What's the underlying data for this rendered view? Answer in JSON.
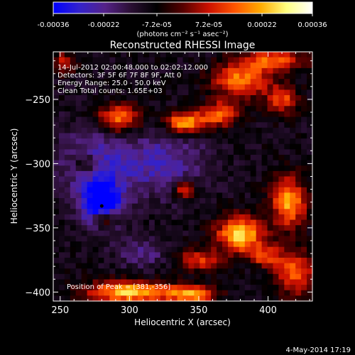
{
  "colorbar": {
    "ticks": [
      -0.00036,
      -0.00022,
      -7.2e-05,
      7.2e-05,
      0.00022,
      0.00036
    ],
    "tick_labels": [
      "-0.00036",
      "-0.00022",
      "-7.2e-05",
      "7.2e-05",
      "0.00022",
      "0.00036"
    ],
    "unit_label": "(photons cm⁻² s⁻¹ asec⁻²)",
    "range": [
      -0.00036,
      0.00036
    ],
    "colormap": [
      "#0000ff",
      "#3322cc",
      "#552288",
      "#2a0f33",
      "#000000",
      "#550000",
      "#cc1100",
      "#ff5500",
      "#ffaa00",
      "#ffff80",
      "#ffffff"
    ]
  },
  "chart_data": {
    "type": "heatmap",
    "title": "Reconstructed RHESSI Image",
    "xlabel": "Heliocentric X (arcsec)",
    "ylabel": "Heliocentric Y (arcsec)",
    "xlim": [
      245,
      432
    ],
    "ylim": [
      -407,
      -213
    ],
    "x_ticks": [
      250,
      300,
      350,
      400
    ],
    "y_ticks": [
      -250,
      -300,
      -350,
      -400
    ],
    "annotations": [
      "14-Jul-2012 02:00:48.000 to 02:02:12.000",
      "Detectors: 3F 5F 6F 7F 8F 9F, Att 0",
      "Energy Range: 25.0 - 50.0 keV",
      "Clean    Total counts: 1.65E+03"
    ],
    "position_label": "Position of Peak = [381,-356]",
    "peak": [
      381,
      -356
    ],
    "marker": [
      280,
      -333
    ],
    "grid": false,
    "sources": [
      {
        "x": 380,
        "y": -355,
        "sx": 12,
        "sy": 10,
        "amp": 1.0
      },
      {
        "x": 292,
        "y": -265,
        "sx": 11,
        "sy": 8,
        "amp": 0.8
      },
      {
        "x": 380,
        "y": -235,
        "sx": 14,
        "sy": 10,
        "amp": 0.75
      },
      {
        "x": 340,
        "y": -268,
        "sx": 10,
        "sy": 6,
        "amp": 0.95
      },
      {
        "x": 365,
        "y": -262,
        "sx": 9,
        "sy": 7,
        "amp": 0.7
      },
      {
        "x": 410,
        "y": -250,
        "sx": 8,
        "sy": 8,
        "amp": 0.6
      },
      {
        "x": 300,
        "y": -400,
        "sx": 22,
        "sy": 6,
        "amp": 0.95
      },
      {
        "x": 345,
        "y": -402,
        "sx": 12,
        "sy": 5,
        "amp": 0.8
      },
      {
        "x": 415,
        "y": -330,
        "sx": 9,
        "sy": 14,
        "amp": 0.85
      },
      {
        "x": 420,
        "y": -385,
        "sx": 10,
        "sy": 12,
        "amp": 0.7
      },
      {
        "x": 282,
        "y": -343,
        "sx": 6,
        "sy": 5,
        "amp": 0.75
      },
      {
        "x": 340,
        "y": -320,
        "sx": 6,
        "sy": 5,
        "amp": 0.65
      },
      {
        "x": 268,
        "y": -300,
        "sx": 7,
        "sy": 6,
        "amp": 0.45
      },
      {
        "x": 252,
        "y": -222,
        "sx": 6,
        "sy": 6,
        "amp": 0.5
      },
      {
        "x": 405,
        "y": -220,
        "sx": 16,
        "sy": 6,
        "amp": 0.65
      },
      {
        "x": 350,
        "y": -375,
        "sx": 12,
        "sy": 6,
        "amp": 0.55
      },
      {
        "x": 398,
        "y": -372,
        "sx": 8,
        "sy": 6,
        "amp": 0.55
      },
      {
        "x": 280,
        "y": -333,
        "sx": 10,
        "sy": 12,
        "amp": -0.9
      },
      {
        "x": 275,
        "y": -300,
        "sx": 20,
        "sy": 20,
        "amp": -0.45
      },
      {
        "x": 325,
        "y": -300,
        "sx": 22,
        "sy": 18,
        "amp": -0.4
      },
      {
        "x": 310,
        "y": -370,
        "sx": 14,
        "sy": 8,
        "amp": -0.3
      }
    ]
  },
  "footer": {
    "date": "4-May-2014 17:19"
  }
}
